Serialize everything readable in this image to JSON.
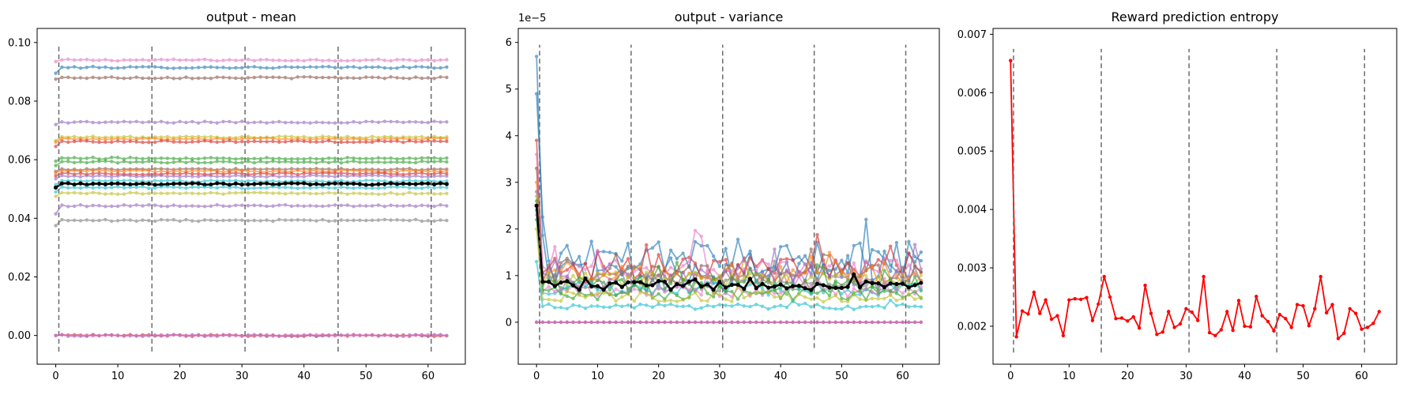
{
  "chart_data": [
    {
      "type": "line",
      "title": "output - mean",
      "xlabel": "",
      "ylabel": "",
      "xlim": [
        -3,
        66
      ],
      "ylim": [
        -0.0098,
        0.1048
      ],
      "xticks": [
        0,
        10,
        20,
        30,
        40,
        50,
        60
      ],
      "yticks": [
        0.0,
        0.02,
        0.04,
        0.06,
        0.08,
        0.1
      ],
      "ytick_labels": [
        "0.00",
        "0.02",
        "0.04",
        "0.06",
        "0.08",
        "0.10"
      ],
      "grid": false,
      "vlines": {
        "x": [
          0.5,
          15.5,
          30.5,
          45.5,
          60.5
        ],
        "ymin": -0.0055,
        "ymax": 0.099,
        "color": "#6b6b6b",
        "style": "dashed"
      },
      "n_points": 64,
      "series_note_colors": "tab10",
      "series": [
        {
          "color": "#e377c2",
          "start": 0.0935,
          "level": 0.094
        },
        {
          "color": "#1f77b4",
          "start": 0.0895,
          "level": 0.0915
        },
        {
          "color": "#8c564b",
          "start": 0.0875,
          "level": 0.088
        },
        {
          "color": "#9467bd",
          "start": 0.072,
          "level": 0.0728
        },
        {
          "color": "#bcbd22",
          "start": 0.0665,
          "level": 0.0677
        },
        {
          "color": "#ff7f0e",
          "start": 0.066,
          "level": 0.0671
        },
        {
          "color": "#d62728",
          "start": 0.0645,
          "level": 0.0662
        },
        {
          "color": "#2ca02c",
          "start": 0.0595,
          "level": 0.0605
        },
        {
          "color": "#2ca02c",
          "start": 0.058,
          "level": 0.0592
        },
        {
          "color": "#8c564b",
          "start": 0.056,
          "level": 0.0567
        },
        {
          "color": "#ff7f0e",
          "start": 0.0555,
          "level": 0.0561
        },
        {
          "color": "#d62728",
          "start": 0.0545,
          "level": 0.0552
        },
        {
          "color": "#9467bd",
          "start": 0.0535,
          "level": 0.0544
        },
        {
          "color": "#17becf",
          "start": 0.0515,
          "level": 0.0527
        },
        {
          "color": "#000000",
          "start": 0.0505,
          "level": 0.0517,
          "emphasis": true
        },
        {
          "color": "#17becf",
          "start": 0.049,
          "level": 0.0505
        },
        {
          "color": "#bcbd22",
          "start": 0.0475,
          "level": 0.0485
        },
        {
          "color": "#9467bd",
          "start": 0.0415,
          "level": 0.0443
        },
        {
          "color": "#7f7f7f",
          "start": 0.0375,
          "level": 0.0393
        },
        {
          "color": "#d62728",
          "start": 0.0,
          "level": 0.0
        },
        {
          "color": "#9467bd",
          "start": 0.0,
          "level": 0.0
        },
        {
          "color": "#e377c2",
          "start": 0.0,
          "level": 0.0
        }
      ]
    },
    {
      "type": "line",
      "title": "output - variance",
      "offset_text": "1e−5",
      "xlabel": "",
      "ylabel": "",
      "xlim": [
        -3,
        66
      ],
      "ylim": [
        -0.9,
        6.3
      ],
      "xticks": [
        0,
        10,
        20,
        30,
        40,
        50,
        60
      ],
      "yticks": [
        0,
        1,
        2,
        3,
        4,
        5,
        6
      ],
      "ytick_labels": [
        "0",
        "1",
        "2",
        "3",
        "4",
        "5",
        "6"
      ],
      "grid": false,
      "vlines": {
        "x": [
          0.5,
          15.5,
          30.5,
          45.5,
          60.5
        ],
        "ymin": -0.55,
        "ymax": 5.95,
        "color": "#6b6b6b",
        "style": "dashed"
      },
      "n_points": 64,
      "series": [
        {
          "color": "#1f77b4",
          "start": 5.7,
          "level": 1.35,
          "amp": 0.5
        },
        {
          "color": "#1f77b4",
          "start": 4.9,
          "level": 1.2,
          "amp": 0.45
        },
        {
          "color": "#d62728",
          "start": 3.9,
          "level": 1.15,
          "amp": 0.3
        },
        {
          "color": "#e377c2",
          "start": 3.6,
          "level": 1.1,
          "amp": 0.3
        },
        {
          "color": "#8c564b",
          "start": 3.3,
          "level": 1.05,
          "amp": 0.28
        },
        {
          "color": "#ff7f0e",
          "start": 3.0,
          "level": 1.0,
          "amp": 0.25
        },
        {
          "color": "#9467bd",
          "start": 2.8,
          "level": 0.95,
          "amp": 0.25
        },
        {
          "color": "#bcbd22",
          "start": 2.7,
          "level": 0.9,
          "amp": 0.22
        },
        {
          "color": "#2ca02c",
          "start": 2.6,
          "level": 0.82,
          "amp": 0.2
        },
        {
          "color": "#7f7f7f",
          "start": 2.5,
          "level": 0.78,
          "amp": 0.2
        },
        {
          "color": "#17becf",
          "start": 2.4,
          "level": 0.72,
          "amp": 0.18
        },
        {
          "color": "#e377c2",
          "start": 2.3,
          "level": 0.66,
          "amp": 0.16
        },
        {
          "color": "#2ca02c",
          "start": 2.2,
          "level": 0.6,
          "amp": 0.15
        },
        {
          "color": "#bcbd22",
          "start": 2.0,
          "level": 0.55,
          "amp": 0.14
        },
        {
          "color": "#17becf",
          "start": 1.3,
          "level": 0.33,
          "amp": 0.07
        },
        {
          "color": "#000000",
          "start": 2.5,
          "level": 0.78,
          "amp": 0.12,
          "emphasis": true
        },
        {
          "color": "#d62728",
          "start": 0.0,
          "level": 0.0,
          "amp": 0.0
        },
        {
          "color": "#9467bd",
          "start": 0.0,
          "level": 0.0,
          "amp": 0.0
        },
        {
          "color": "#e377c2",
          "start": 0.0,
          "level": 0.0,
          "amp": 0.0
        }
      ]
    },
    {
      "type": "line",
      "title": "Reward prediction entropy",
      "xlabel": "",
      "ylabel": "",
      "xlim": [
        -3,
        66
      ],
      "ylim": [
        0.00135,
        0.0071
      ],
      "xticks": [
        0,
        10,
        20,
        30,
        40,
        50,
        60
      ],
      "yticks": [
        0.002,
        0.003,
        0.004,
        0.005,
        0.006,
        0.007
      ],
      "ytick_labels": [
        "0.002",
        "0.003",
        "0.004",
        "0.005",
        "0.006",
        "0.007"
      ],
      "grid": false,
      "vlines": {
        "x": [
          0.5,
          15.5,
          30.5,
          45.5,
          60.5
        ],
        "ymin": 0.00155,
        "ymax": 0.00675,
        "color": "#6b6b6b",
        "style": "dashed"
      },
      "series": [
        {
          "name": "",
          "color": "#ff0000",
          "x": [
            0,
            1,
            2,
            3,
            4,
            5,
            6,
            7,
            8,
            9,
            10,
            11,
            12,
            13,
            14,
            15,
            16,
            17,
            18,
            19,
            20,
            21,
            22,
            23,
            24,
            25,
            26,
            27,
            28,
            29,
            30,
            31,
            32,
            33,
            34,
            35,
            36,
            37,
            38,
            39,
            40,
            41,
            42,
            43,
            44,
            45,
            46,
            47,
            48,
            49,
            50,
            51,
            52,
            53,
            54,
            55,
            56,
            57,
            58,
            59,
            60,
            61,
            62,
            63
          ],
          "values": [
            0.00655,
            0.00182,
            0.00226,
            0.00221,
            0.00258,
            0.00222,
            0.00245,
            0.00212,
            0.00218,
            0.00184,
            0.00245,
            0.00247,
            0.00246,
            0.00249,
            0.0021,
            0.00238,
            0.00285,
            0.0025,
            0.00213,
            0.00214,
            0.00209,
            0.00216,
            0.00197,
            0.0027,
            0.00222,
            0.00186,
            0.0019,
            0.00225,
            0.00198,
            0.00204,
            0.0023,
            0.00224,
            0.0021,
            0.00285,
            0.00189,
            0.00184,
            0.00194,
            0.00225,
            0.00193,
            0.00244,
            0.002,
            0.00199,
            0.00251,
            0.00218,
            0.00208,
            0.00192,
            0.0022,
            0.00213,
            0.00198,
            0.00237,
            0.00235,
            0.00201,
            0.0023,
            0.00285,
            0.00223,
            0.00237,
            0.00179,
            0.00188,
            0.0023,
            0.00222,
            0.00195,
            0.00198,
            0.00205,
            0.00225
          ]
        }
      ]
    }
  ]
}
